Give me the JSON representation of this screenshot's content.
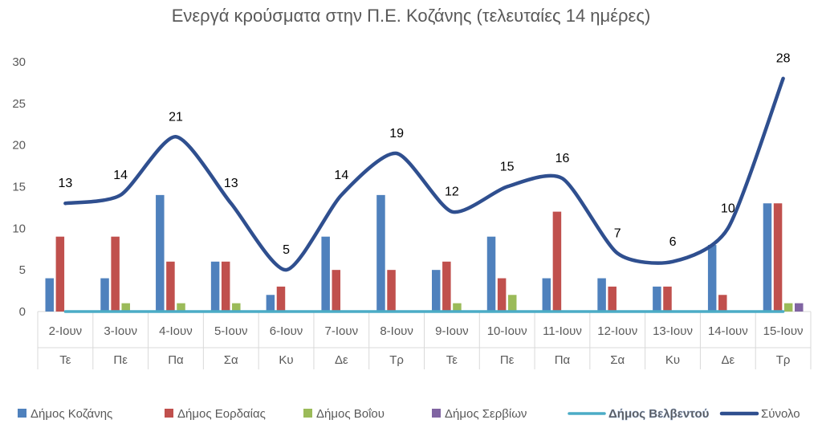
{
  "chart_data": {
    "type": "bar",
    "title": "Ενεργά κρούσματα στην Π.Ε. Κοζάνης (τελευταίες 14 ημέρες)",
    "categories": [
      "2-Ιουν",
      "3-Ιουν",
      "4-Ιουν",
      "5-Ιουν",
      "6-Ιουν",
      "7-Ιουν",
      "8-Ιουν",
      "9-Ιουν",
      "10-Ιουν",
      "11-Ιουν",
      "12-Ιουν",
      "13-Ιουν",
      "14-Ιουν",
      "15-Ιουν"
    ],
    "days": [
      "Τε",
      "Πε",
      "Πα",
      "Σα",
      "Κυ",
      "Δε",
      "Τρ",
      "Τε",
      "Πε",
      "Πα",
      "Σα",
      "Κυ",
      "Δε",
      "Τρ"
    ],
    "ylim": [
      0,
      30
    ],
    "yticks": [
      0,
      5,
      10,
      15,
      20,
      25,
      30
    ],
    "grid": false,
    "legend_position": "bottom",
    "series": [
      {
        "name": "Δήμος Κοζάνης",
        "kind": "bar",
        "color": "#4F81BD",
        "values": [
          4,
          4,
          14,
          6,
          2,
          9,
          14,
          5,
          9,
          4,
          4,
          3,
          8,
          13
        ]
      },
      {
        "name": "Δήμος Εορδαίας",
        "kind": "bar",
        "color": "#C0504D",
        "values": [
          9,
          9,
          6,
          6,
          3,
          5,
          5,
          6,
          4,
          12,
          3,
          3,
          2,
          13
        ]
      },
      {
        "name": "Δήμος Βοΐου",
        "kind": "bar",
        "color": "#9BBB59",
        "values": [
          0,
          1,
          1,
          1,
          0,
          0,
          0,
          1,
          2,
          0,
          0,
          0,
          0,
          1
        ]
      },
      {
        "name": "Δήμος Σερβίων",
        "kind": "bar",
        "color": "#8064A2",
        "values": [
          0,
          0,
          0,
          0,
          0,
          0,
          0,
          0,
          0,
          0,
          0,
          0,
          0,
          1
        ]
      },
      {
        "name": "Δήμος Βελβεντού",
        "kind": "line",
        "color": "#4BACC6",
        "values": [
          0,
          0,
          0,
          0,
          0,
          0,
          0,
          0,
          0,
          0,
          0,
          0,
          0,
          0
        ]
      },
      {
        "name": "Σύνολο",
        "kind": "line",
        "color": "#2F4F8F",
        "values": [
          13,
          14,
          21,
          13,
          5,
          14,
          19,
          12,
          15,
          16,
          7,
          6,
          10,
          28
        ],
        "labels": [
          "13",
          "14",
          "21",
          "13",
          "5",
          "14",
          "19",
          "12",
          "15",
          "16",
          "7",
          "6",
          "10",
          "28"
        ]
      }
    ]
  }
}
